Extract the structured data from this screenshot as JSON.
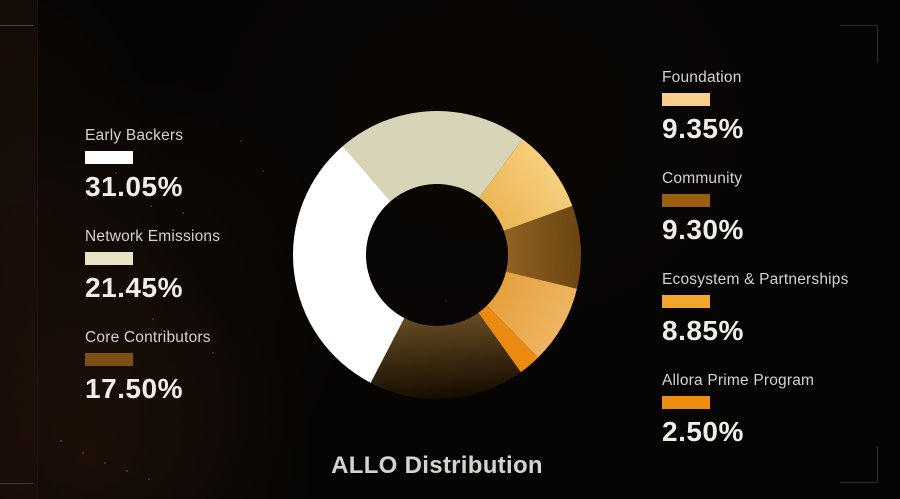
{
  "chart_data": {
    "type": "pie",
    "donut": true,
    "title": "ALLO Distribution",
    "start_angle_deg": 130.8,
    "direction": "clockwise",
    "inner_radius": 71,
    "outer_radius": 144,
    "legend_position": "left-and-right",
    "segments": [
      {
        "label": "Network Emissions",
        "value": 21.45,
        "color": "#d8d4b7"
      },
      {
        "label": "Foundation",
        "value": 9.35,
        "color": "#f1c367",
        "gradient": [
          "#e8ab42",
          "#f6cf7e"
        ]
      },
      {
        "label": "Community",
        "value": 9.3,
        "color": "#8a5a1e",
        "gradient": [
          "#9f6e2c",
          "#6b4410"
        ]
      },
      {
        "label": "Ecosystem & Partnerships",
        "value": 8.85,
        "color": "#e9aa47",
        "gradient": [
          "#e19831",
          "#eeb561"
        ]
      },
      {
        "label": "Allora Prime Program",
        "value": 2.5,
        "color": "#ea8a10"
      },
      {
        "label": "Core Contributors",
        "value": 17.5,
        "color": "#4a3310",
        "gradient": [
          "#7d5c2c",
          "#140c01"
        ]
      },
      {
        "label": "Early Backers",
        "value": 31.05,
        "color": "#ffffff"
      }
    ]
  },
  "legend": {
    "left": [
      {
        "label": "Early Backers",
        "percent": "31.05%",
        "color": "#ffffff"
      },
      {
        "label": "Network Emissions",
        "percent": "21.45%",
        "color": "#e9e2c3"
      },
      {
        "label": "Core Contributors",
        "percent": "17.50%",
        "color": "#7d5016"
      }
    ],
    "right": [
      {
        "label": "Foundation",
        "percent": "9.35%",
        "color": "#f5cf8b"
      },
      {
        "label": "Community",
        "percent": "9.30%",
        "color": "#9a5f0e"
      },
      {
        "label": "Ecosystem & Partnerships",
        "percent": "8.85%",
        "color": "#f0a72c"
      },
      {
        "label": "Allora Prime Program",
        "percent": "2.50%",
        "color": "#ee8d0e"
      }
    ]
  }
}
